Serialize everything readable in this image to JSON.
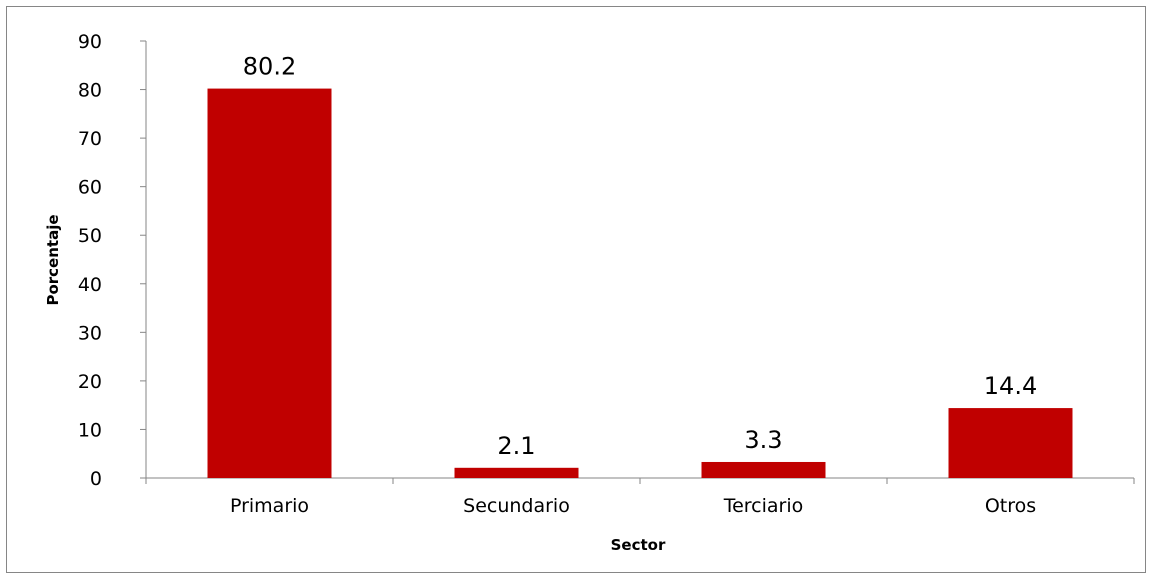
{
  "chart_data": {
    "type": "bar",
    "title": "",
    "xlabel": "Sector",
    "ylabel": "Porcentaje",
    "categories": [
      "Primario",
      "Secundario",
      "Terciario",
      "Otros"
    ],
    "values": [
      80.2,
      2.1,
      3.3,
      14.4
    ],
    "data_labels": [
      "80.2",
      "2.1",
      "3.3",
      "14.4"
    ],
    "ylim": [
      0,
      90
    ],
    "yticks": [
      0,
      10,
      20,
      30,
      40,
      50,
      60,
      70,
      80,
      90
    ],
    "grid": false,
    "legend": "none",
    "bar_color": "#C00000"
  }
}
